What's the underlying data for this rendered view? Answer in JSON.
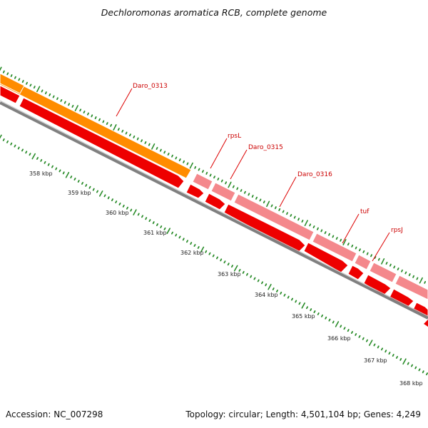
{
  "title": "Dechloromonas aromatica RCB, complete genome",
  "footer": {
    "accession": "Accession: NC_007298",
    "summary": "Topology: circular; Length: 4,501,104 bp; Genes: 4,249"
  },
  "colors": {
    "label_red": "#cc0000",
    "leader_red": "#dd0000",
    "orange_feature": "#ff8c00",
    "pink_feature": "#f4888c",
    "red_feature": "#ee0000",
    "backbone_gray": "#808080",
    "tick_green": "#2a8c2a"
  },
  "scale_labels": [
    "358 kbp",
    "359 kbp",
    "360 kbp",
    "361 kbp",
    "362 kbp",
    "363 kbp",
    "364 kbp",
    "365 kbp",
    "366 kbp",
    "367 kbp",
    "368 kbp"
  ],
  "genes": [
    {
      "name": "Daro_0313",
      "track": "orange"
    },
    {
      "name": "rpsL",
      "track": "pink"
    },
    {
      "name": "Daro_0315",
      "track": "pink"
    },
    {
      "name": "Daro_0316",
      "track": "pink"
    },
    {
      "name": "tuf",
      "track": "pink"
    },
    {
      "name": "rpsJ",
      "track": "pink"
    }
  ]
}
